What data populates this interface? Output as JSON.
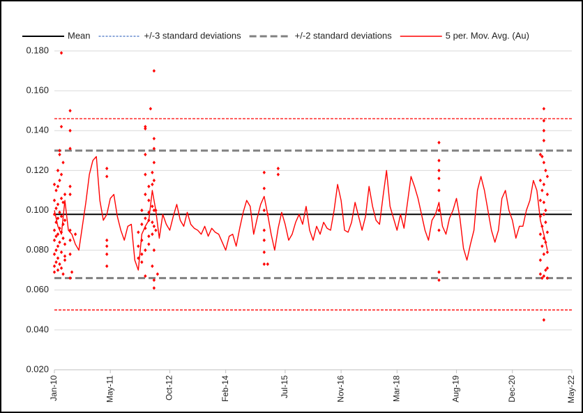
{
  "chart_data": {
    "type": "line",
    "xlim": [
      0,
      148
    ],
    "xticks": [
      {
        "value": 0,
        "label": "Jan-10"
      },
      {
        "value": 16,
        "label": "May-11"
      },
      {
        "value": 33,
        "label": "Oct-12"
      },
      {
        "value": 49,
        "label": "Feb-14"
      },
      {
        "value": 66,
        "label": "Jul-15"
      },
      {
        "value": 82,
        "label": "Nov-16"
      },
      {
        "value": 98,
        "label": "Mar-18"
      },
      {
        "value": 115,
        "label": "Aug-19"
      },
      {
        "value": 131,
        "label": "Dec-20"
      },
      {
        "value": 148,
        "label": "May-22"
      }
    ],
    "ylim": [
      0.02,
      0.18
    ],
    "yticks": [
      {
        "value": 0.02,
        "label": "0.020"
      },
      {
        "value": 0.04,
        "label": "0.040"
      },
      {
        "value": 0.06,
        "label": "0.060"
      },
      {
        "value": 0.08,
        "label": "0.080"
      },
      {
        "value": 0.1,
        "label": "0.100"
      },
      {
        "value": 0.12,
        "label": "0.120"
      },
      {
        "value": 0.14,
        "label": "0.140"
      },
      {
        "value": 0.16,
        "label": "0.160"
      },
      {
        "value": 0.18,
        "label": "0.180"
      }
    ],
    "grid": true,
    "legend": "top",
    "reference_lines": [
      {
        "name": "Mean",
        "color": "#000000",
        "legend_color": "#000000",
        "style": "solid",
        "values": [
          0.098
        ]
      },
      {
        "name": "+/-3 standard deviations",
        "color": "#ff0000",
        "legend_color": "#4472c4",
        "style": "dotted",
        "values": [
          0.146,
          0.05
        ]
      },
      {
        "name": "+/-2 standard deviations",
        "color": "#808080",
        "legend_color": "#808080",
        "style": "dashed",
        "values": [
          0.13,
          0.066
        ]
      }
    ],
    "series": [
      {
        "name": "5 per. Mov. Avg. (Au)",
        "color": "#ff0000",
        "x": [
          0,
          1,
          2,
          3,
          4,
          5,
          6,
          7,
          8,
          9,
          10,
          11,
          12,
          13,
          14,
          15,
          16,
          17,
          18,
          19,
          20,
          21,
          22,
          23,
          24,
          25,
          26,
          27,
          28,
          29,
          30,
          31,
          32,
          33,
          34,
          35,
          36,
          37,
          38,
          39,
          40,
          41,
          42,
          43,
          44,
          45,
          46,
          47,
          48,
          49,
          50,
          51,
          52,
          53,
          54,
          55,
          56,
          57,
          58,
          59,
          60,
          61,
          62,
          63,
          64,
          65,
          66,
          67,
          68,
          69,
          70,
          71,
          72,
          73,
          74,
          75,
          76,
          77,
          78,
          79,
          80,
          81,
          82,
          83,
          84,
          85,
          86,
          87,
          88,
          89,
          90,
          91,
          92,
          93,
          94,
          95,
          96,
          97,
          98,
          99,
          100,
          101,
          102,
          103,
          104,
          105,
          106,
          107,
          108,
          109,
          110,
          111,
          112,
          113,
          114,
          115,
          116,
          117,
          118,
          119,
          120,
          121,
          122,
          123,
          124,
          125,
          126,
          127,
          128,
          129,
          130,
          131,
          132,
          133,
          134,
          135,
          136,
          137,
          138,
          139,
          140,
          141
        ],
        "values": [
          0.1,
          0.092,
          0.088,
          0.105,
          0.09,
          0.088,
          0.083,
          0.08,
          0.092,
          0.104,
          0.118,
          0.125,
          0.127,
          0.105,
          0.095,
          0.098,
          0.106,
          0.108,
          0.097,
          0.09,
          0.085,
          0.092,
          0.093,
          0.075,
          0.07,
          0.088,
          0.092,
          0.095,
          0.11,
          0.1,
          0.086,
          0.098,
          0.093,
          0.09,
          0.097,
          0.103,
          0.095,
          0.092,
          0.099,
          0.093,
          0.091,
          0.09,
          0.088,
          0.092,
          0.087,
          0.091,
          0.089,
          0.088,
          0.084,
          0.08,
          0.087,
          0.088,
          0.082,
          0.091,
          0.099,
          0.105,
          0.102,
          0.088,
          0.096,
          0.103,
          0.107,
          0.098,
          0.088,
          0.08,
          0.091,
          0.099,
          0.093,
          0.085,
          0.088,
          0.094,
          0.098,
          0.093,
          0.102,
          0.09,
          0.085,
          0.092,
          0.088,
          0.094,
          0.091,
          0.09,
          0.1,
          0.113,
          0.105,
          0.09,
          0.089,
          0.094,
          0.104,
          0.097,
          0.09,
          0.097,
          0.112,
          0.102,
          0.095,
          0.093,
          0.107,
          0.12,
          0.102,
          0.096,
          0.09,
          0.098,
          0.091,
          0.104,
          0.117,
          0.112,
          0.106,
          0.098,
          0.09,
          0.085,
          0.095,
          0.098,
          0.104,
          0.092,
          0.088,
          0.096,
          0.1,
          0.106,
          0.096,
          0.081,
          0.075,
          0.083,
          0.09,
          0.11,
          0.117,
          0.11,
          0.1,
          0.09,
          0.084,
          0.09,
          0.106,
          0.11,
          0.1,
          0.095,
          0.086,
          0.092,
          0.092,
          0.1,
          0.105,
          0.115,
          0.11,
          0.095,
          0.088,
          0.08
        ]
      }
    ],
    "points": {
      "color": "#ff0000",
      "x": [
        0,
        0,
        0,
        0,
        0,
        0,
        0,
        0,
        0.5,
        0.5,
        0.5,
        0.5,
        0.5,
        0.5,
        1,
        1,
        1,
        1,
        1,
        1,
        1,
        1,
        1.5,
        1.5,
        1.5,
        1.5,
        1.5,
        1.5,
        1.5,
        2,
        2,
        2,
        2,
        2,
        2,
        2,
        2,
        2.5,
        2.5,
        2.5,
        2.5,
        2.5,
        3,
        3,
        3,
        3,
        3,
        4.5,
        4.5,
        4.5,
        4.5,
        4.5,
        4.5,
        4.5,
        4.5,
        4.5,
        5,
        6,
        15,
        15,
        15,
        15,
        15,
        15,
        24,
        24,
        24,
        25,
        25,
        25,
        25,
        25,
        26,
        26,
        26,
        26,
        26,
        26,
        26,
        26,
        26,
        27,
        27,
        27,
        27,
        27,
        27,
        27.5,
        28,
        28,
        28,
        28,
        28,
        28,
        28.5,
        28.5,
        28.5,
        28.5,
        28.5,
        28.5,
        28.5,
        28.5,
        28.5,
        28.5,
        29,
        29,
        29.5,
        60,
        60,
        60,
        60,
        60,
        60,
        60,
        61,
        61,
        64,
        64,
        110,
        110,
        110,
        110,
        110,
        110,
        110,
        110,
        110,
        139,
        139,
        139,
        139,
        139,
        139,
        139,
        139.5,
        139.5,
        139.5,
        139.5,
        139.5,
        140,
        140,
        140,
        140,
        140,
        140,
        140,
        140,
        140,
        140,
        140,
        140,
        140.5,
        140.5,
        140.5,
        140.5,
        140.5,
        141,
        141,
        141,
        141,
        141,
        141
      ],
      "values": [
        0.113,
        0.105,
        0.098,
        0.09,
        0.085,
        0.078,
        0.072,
        0.069,
        0.11,
        0.101,
        0.094,
        0.087,
        0.08,
        0.074,
        0.12,
        0.112,
        0.103,
        0.096,
        0.088,
        0.082,
        0.076,
        0.07,
        0.13,
        0.128,
        0.115,
        0.099,
        0.091,
        0.084,
        0.073,
        0.179,
        0.142,
        0.118,
        0.106,
        0.097,
        0.089,
        0.079,
        0.071,
        0.124,
        0.104,
        0.093,
        0.086,
        0.068,
        0.108,
        0.095,
        0.083,
        0.077,
        0.075,
        0.15,
        0.14,
        0.131,
        0.112,
        0.108,
        0.09,
        0.085,
        0.078,
        0.066,
        0.069,
        0.088,
        0.121,
        0.117,
        0.085,
        0.082,
        0.078,
        0.072,
        0.089,
        0.082,
        0.076,
        0.1,
        0.093,
        0.085,
        0.078,
        0.074,
        0.128,
        0.142,
        0.141,
        0.118,
        0.108,
        0.096,
        0.091,
        0.08,
        0.067,
        0.112,
        0.105,
        0.099,
        0.095,
        0.087,
        0.083,
        0.151,
        0.119,
        0.113,
        0.102,
        0.094,
        0.088,
        0.072,
        0.17,
        0.136,
        0.131,
        0.124,
        0.115,
        0.1,
        0.092,
        0.08,
        0.065,
        0.061,
        0.1,
        0.09,
        0.068,
        0.119,
        0.111,
        0.1,
        0.09,
        0.085,
        0.079,
        0.073,
        0.098,
        0.073,
        0.121,
        0.118,
        0.134,
        0.125,
        0.12,
        0.116,
        0.11,
        0.1,
        0.09,
        0.069,
        0.065,
        0.128,
        0.115,
        0.105,
        0.097,
        0.088,
        0.075,
        0.068,
        0.127,
        0.11,
        0.092,
        0.082,
        0.066,
        0.151,
        0.145,
        0.14,
        0.135,
        0.124,
        0.113,
        0.104,
        0.098,
        0.086,
        0.078,
        0.067,
        0.045,
        0.12,
        0.1,
        0.094,
        0.084,
        0.07,
        0.117,
        0.108,
        0.089,
        0.079,
        0.071,
        0.066
      ]
    }
  }
}
